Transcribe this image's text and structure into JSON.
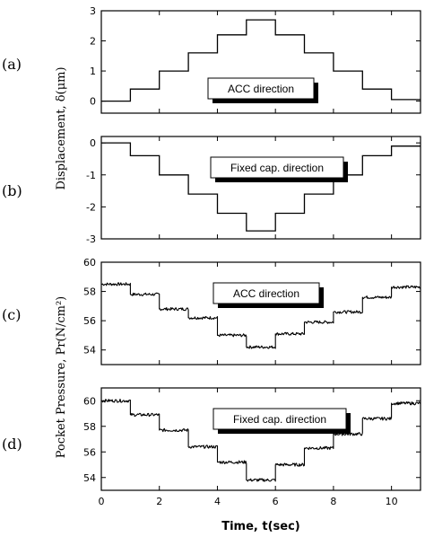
{
  "chart_data": [
    {
      "type": "line",
      "panel_letter": "(a)",
      "annotation": "ACC direction",
      "ylim": [
        -0.4,
        3
      ],
      "yticks": [
        "3",
        "2",
        "1",
        "0"
      ],
      "ytick_values": [
        3,
        2,
        1,
        0
      ],
      "xlim": [
        0,
        11
      ],
      "noise": 0,
      "series": [
        {
          "x": [
            0,
            1,
            1,
            2,
            2,
            3,
            3,
            4,
            4,
            5,
            5,
            6,
            6,
            7,
            7,
            8,
            8,
            9,
            9,
            10,
            10,
            11
          ],
          "y": [
            0,
            0,
            0.4,
            0.4,
            1.0,
            1.0,
            1.6,
            1.6,
            2.2,
            2.2,
            2.7,
            2.7,
            2.2,
            2.2,
            1.6,
            1.6,
            1.0,
            1.0,
            0.4,
            0.4,
            0.05,
            0.05
          ]
        }
      ]
    },
    {
      "type": "line",
      "panel_letter": "(b)",
      "annotation": "Fixed cap. direction",
      "ylim": [
        -3,
        0.2
      ],
      "yticks": [
        "0",
        "-1",
        "-2",
        "-3"
      ],
      "ytick_values": [
        0,
        -1,
        -2,
        -3
      ],
      "xlim": [
        0,
        11
      ],
      "noise": 0,
      "series": [
        {
          "x": [
            0,
            1,
            1,
            2,
            2,
            3,
            3,
            4,
            4,
            5,
            5,
            6,
            6,
            7,
            7,
            8,
            8,
            9,
            9,
            10,
            10,
            11
          ],
          "y": [
            0,
            0,
            -0.4,
            -0.4,
            -1.0,
            -1.0,
            -1.6,
            -1.6,
            -2.2,
            -2.2,
            -2.75,
            -2.75,
            -2.2,
            -2.2,
            -1.6,
            -1.6,
            -1.0,
            -1.0,
            -0.4,
            -0.4,
            -0.1,
            -0.1
          ]
        }
      ]
    },
    {
      "type": "line",
      "panel_letter": "(c)",
      "annotation": "ACC direction",
      "ylim": [
        53,
        60
      ],
      "yticks": [
        "60",
        "58",
        "56",
        "54"
      ],
      "ytick_values": [
        60,
        58,
        56,
        54
      ],
      "xlim": [
        0,
        11
      ],
      "noise": 0.1,
      "series": [
        {
          "x": [
            0,
            1,
            1,
            2,
            2,
            3,
            3,
            4,
            4,
            5,
            5,
            6,
            6,
            7,
            7,
            8,
            8,
            9,
            9,
            10,
            10,
            11
          ],
          "y": [
            58.5,
            58.5,
            57.8,
            57.8,
            56.8,
            56.8,
            56.2,
            56.2,
            55.0,
            55.0,
            54.2,
            54.2,
            55.1,
            55.1,
            55.9,
            55.9,
            56.6,
            56.6,
            57.6,
            57.6,
            58.3,
            58.3
          ]
        }
      ]
    },
    {
      "type": "line",
      "panel_letter": "(d)",
      "annotation": "Fixed cap. direction",
      "ylim": [
        53,
        61
      ],
      "yticks": [
        "60",
        "58",
        "56",
        "54"
      ],
      "ytick_values": [
        60,
        58,
        56,
        54
      ],
      "xlim": [
        0,
        11
      ],
      "noise": 0.12,
      "series": [
        {
          "x": [
            0,
            1,
            1,
            2,
            2,
            3,
            3,
            4,
            4,
            5,
            5,
            6,
            6,
            7,
            7,
            8,
            8,
            9,
            9,
            10,
            10,
            11
          ],
          "y": [
            60.0,
            60.0,
            58.9,
            58.9,
            57.7,
            57.7,
            56.4,
            56.4,
            55.2,
            55.2,
            53.8,
            53.8,
            55.0,
            55.0,
            56.3,
            56.3,
            57.4,
            57.4,
            58.6,
            58.6,
            59.8,
            59.8
          ]
        }
      ]
    }
  ],
  "axes": {
    "xticks": [
      "0",
      "2",
      "4",
      "6",
      "8",
      "10"
    ],
    "xtick_values": [
      0,
      2,
      4,
      6,
      8,
      10
    ],
    "xlabel": "Time, t(sec)",
    "ylabel_top": "Displacement, δ(μm)",
    "ylabel_bottom": "Pocket Pressure, Pr(N/cm²)"
  }
}
